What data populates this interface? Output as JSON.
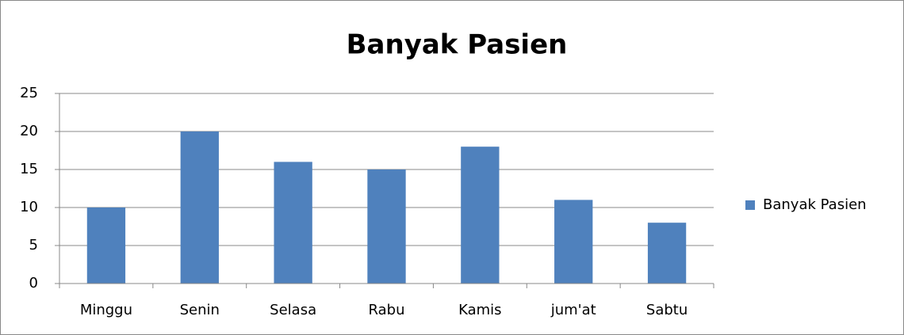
{
  "chart_data": {
    "type": "bar",
    "title": "Banyak Pasien",
    "categories": [
      "Minggu",
      "Senin",
      "Selasa",
      "Rabu",
      "Kamis",
      "jum'at",
      "Sabtu"
    ],
    "series": [
      {
        "name": "Banyak Pasien",
        "color": "#4f81bd",
        "values": [
          10,
          20,
          16,
          15,
          18,
          11,
          8
        ]
      }
    ],
    "ylim": [
      0,
      25
    ],
    "yticks": [
      0,
      5,
      10,
      15,
      20,
      25
    ],
    "grid": true,
    "legend": "right"
  }
}
